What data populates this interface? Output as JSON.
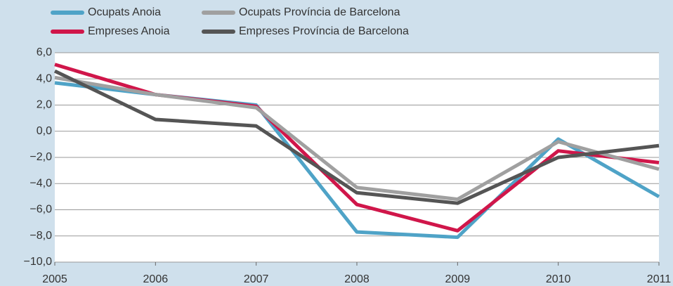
{
  "chart_data": {
    "type": "line",
    "x": [
      2005,
      2006,
      2007,
      2008,
      2009,
      2010,
      2011
    ],
    "xlim": [
      2005,
      2011
    ],
    "xticks": [
      2005,
      2006,
      2007,
      2008,
      2009,
      2010,
      2011
    ],
    "ylim": [
      -10,
      6
    ],
    "yticks": [
      {
        "value": 6,
        "label": "6,0"
      },
      {
        "value": 4,
        "label": "4,0"
      },
      {
        "value": 2,
        "label": "2,0"
      },
      {
        "value": 0,
        "label": "0,0"
      },
      {
        "value": -2,
        "label": "−2,0"
      },
      {
        "value": -4,
        "label": "−4,0"
      },
      {
        "value": -6,
        "label": "−6,0"
      },
      {
        "value": -8,
        "label": "−8,0"
      },
      {
        "value": -10,
        "label": "−10,0"
      }
    ],
    "grid": true,
    "series": [
      {
        "name": "Ocupats Anoia",
        "color": "#4fa3c7",
        "values": [
          3.7,
          2.8,
          2.0,
          -7.7,
          -8.1,
          -0.6,
          -5.0
        ]
      },
      {
        "name": "Empreses Anoia",
        "color": "#d0164a",
        "values": [
          5.1,
          2.8,
          1.9,
          -5.6,
          -7.6,
          -1.5,
          -2.4
        ]
      },
      {
        "name": "Ocupats Província de Barcelona",
        "color": "#a0a0a0",
        "values": [
          4.1,
          2.8,
          1.8,
          -4.3,
          -5.2,
          -0.8,
          -2.9
        ]
      },
      {
        "name": "Empreses Província de Barcelona",
        "color": "#555555",
        "values": [
          4.6,
          0.9,
          0.4,
          -4.7,
          -5.5,
          -2.0,
          -1.1
        ]
      }
    ]
  }
}
